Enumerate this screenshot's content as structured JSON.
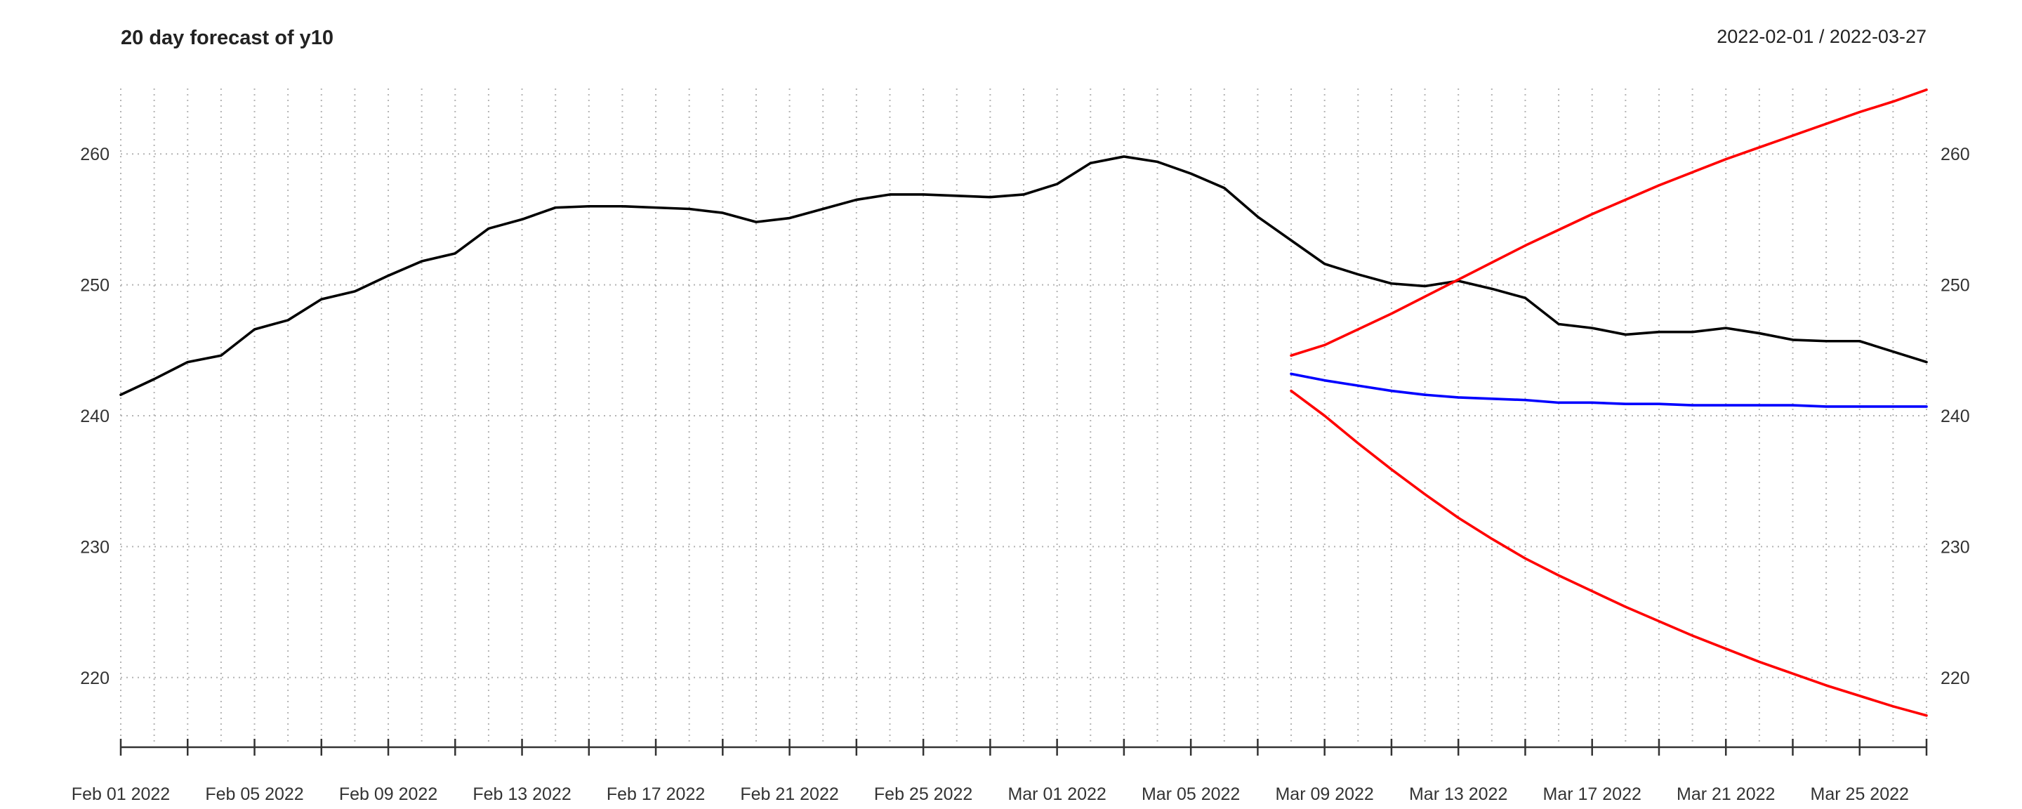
{
  "chart_data": {
    "type": "line",
    "title": "20 day forecast of y10",
    "date_range": "2022-02-01 / 2022-03-27",
    "xlabel": "",
    "ylabel": "",
    "x_start": "2022-02-01",
    "x_end": "2022-03-27",
    "ylim": [
      215,
      265
    ],
    "y_ticks": [
      220,
      230,
      240,
      250,
      260
    ],
    "y_tick_labels": [
      "220",
      "230",
      "240",
      "250",
      "260"
    ],
    "y_axis_both_sides": true,
    "x_ticks": [
      "2022-02-01",
      "2022-02-05",
      "2022-02-09",
      "2022-02-13",
      "2022-02-17",
      "2022-02-21",
      "2022-02-25",
      "2022-03-01",
      "2022-03-05",
      "2022-03-09",
      "2022-03-13",
      "2022-03-17",
      "2022-03-21",
      "2022-03-25"
    ],
    "x_tick_labels": [
      "Feb 01 2022",
      "Feb 05 2022",
      "Feb 09 2022",
      "Feb 13 2022",
      "Feb 17 2022",
      "Feb 21 2022",
      "Feb 25 2022",
      "Mar 01 2022",
      "Mar 05 2022",
      "Mar 09 2022",
      "Mar 13 2022",
      "Mar 17 2022",
      "Mar 21 2022",
      "Mar 25 2022"
    ],
    "grid": "dotted vertical and horizontal",
    "series": [
      {
        "color": "#000000",
        "x": [
          "2022-02-01",
          "2022-02-02",
          "2022-02-03",
          "2022-02-04",
          "2022-02-05",
          "2022-02-06",
          "2022-02-07",
          "2022-02-08",
          "2022-02-09",
          "2022-02-10",
          "2022-02-11",
          "2022-02-12",
          "2022-02-13",
          "2022-02-14",
          "2022-02-15",
          "2022-02-16",
          "2022-02-17",
          "2022-02-18",
          "2022-02-19",
          "2022-02-20",
          "2022-02-21",
          "2022-02-22",
          "2022-02-23",
          "2022-02-24",
          "2022-02-25",
          "2022-02-26",
          "2022-02-27",
          "2022-02-28",
          "2022-03-01",
          "2022-03-02",
          "2022-03-03",
          "2022-03-04",
          "2022-03-05",
          "2022-03-06",
          "2022-03-07",
          "2022-03-08",
          "2022-03-09",
          "2022-03-10",
          "2022-03-11",
          "2022-03-12",
          "2022-03-13",
          "2022-03-14",
          "2022-03-15",
          "2022-03-16",
          "2022-03-17",
          "2022-03-18",
          "2022-03-19",
          "2022-03-20",
          "2022-03-21",
          "2022-03-22",
          "2022-03-23",
          "2022-03-24",
          "2022-03-25",
          "2022-03-26",
          "2022-03-27"
        ],
        "values": [
          241.6,
          242.8,
          244.1,
          244.6,
          246.6,
          247.3,
          248.9,
          249.5,
          250.7,
          251.8,
          252.4,
          254.3,
          255.0,
          255.9,
          256.0,
          256.0,
          255.9,
          255.8,
          255.5,
          254.8,
          255.1,
          255.8,
          256.5,
          256.9,
          256.9,
          256.8,
          256.7,
          256.9,
          257.7,
          259.3,
          259.8,
          259.4,
          258.5,
          257.4,
          255.2,
          253.4,
          251.6,
          250.8,
          250.1,
          249.9,
          250.3,
          249.7,
          249.0,
          247.0,
          246.7,
          246.2,
          246.4,
          246.4,
          246.7,
          246.3,
          245.8,
          245.7,
          245.7,
          244.9,
          244.1
        ]
      },
      {
        "color": "#0000ff",
        "x": [
          "2022-03-08",
          "2022-03-09",
          "2022-03-10",
          "2022-03-11",
          "2022-03-12",
          "2022-03-13",
          "2022-03-14",
          "2022-03-15",
          "2022-03-16",
          "2022-03-17",
          "2022-03-18",
          "2022-03-19",
          "2022-03-20",
          "2022-03-21",
          "2022-03-22",
          "2022-03-23",
          "2022-03-24",
          "2022-03-25",
          "2022-03-26",
          "2022-03-27"
        ],
        "values": [
          243.2,
          242.7,
          242.3,
          241.9,
          241.6,
          241.4,
          241.3,
          241.2,
          241.0,
          241.0,
          240.9,
          240.9,
          240.8,
          240.8,
          240.8,
          240.8,
          240.7,
          240.7,
          240.7,
          240.7
        ]
      },
      {
        "color": "#ff0000",
        "x": [
          "2022-03-08",
          "2022-03-09",
          "2022-03-10",
          "2022-03-11",
          "2022-03-12",
          "2022-03-13",
          "2022-03-14",
          "2022-03-15",
          "2022-03-16",
          "2022-03-17",
          "2022-03-18",
          "2022-03-19",
          "2022-03-20",
          "2022-03-21",
          "2022-03-22",
          "2022-03-23",
          "2022-03-24",
          "2022-03-25",
          "2022-03-26",
          "2022-03-27"
        ],
        "values": [
          244.6,
          245.4,
          246.6,
          247.8,
          249.1,
          250.4,
          251.7,
          253.0,
          254.2,
          255.4,
          256.5,
          257.6,
          258.6,
          259.6,
          260.5,
          261.4,
          262.3,
          263.2,
          264.0,
          264.9
        ]
      },
      {
        "color": "#ff0000",
        "x": [
          "2022-03-08",
          "2022-03-09",
          "2022-03-10",
          "2022-03-11",
          "2022-03-12",
          "2022-03-13",
          "2022-03-14",
          "2022-03-15",
          "2022-03-16",
          "2022-03-17",
          "2022-03-18",
          "2022-03-19",
          "2022-03-20",
          "2022-03-21",
          "2022-03-22",
          "2022-03-23",
          "2022-03-24",
          "2022-03-25",
          "2022-03-26",
          "2022-03-27"
        ],
        "values": [
          241.9,
          240.0,
          237.9,
          235.9,
          234.0,
          232.2,
          230.6,
          229.1,
          227.8,
          226.6,
          225.4,
          224.3,
          223.2,
          222.2,
          221.2,
          220.3,
          219.4,
          218.6,
          217.8,
          217.1
        ]
      }
    ]
  }
}
